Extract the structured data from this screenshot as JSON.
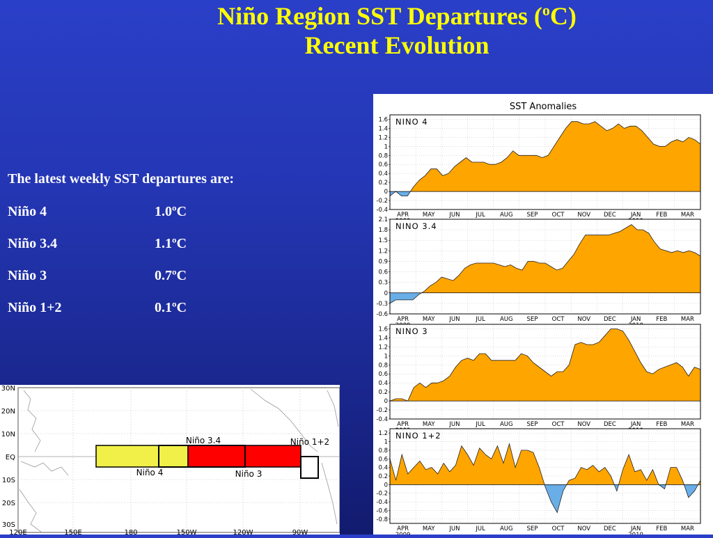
{
  "title": {
    "line1_pre": "Niño Region SST Departures (",
    "line1_sup": "o",
    "line1_post": "C)",
    "line2": "Recent Evolution"
  },
  "latest": {
    "heading": "The latest weekly SST departures are:",
    "regions": [
      {
        "name": "Niño 4",
        "value": "1.0ºC"
      },
      {
        "name": "Niño 3.4",
        "value": "1.1ºC"
      },
      {
        "name": "Niño 3",
        "value": "0.7ºC"
      },
      {
        "name": "Niño 1+2",
        "value": "0.1ºC"
      }
    ]
  },
  "colors": {
    "positive": "#ffa500",
    "negative": "#6aaee8",
    "nino4_box": "#f0f048",
    "nino3_box": "#ff0000"
  },
  "chart_data": {
    "type": "area",
    "title": "SST Anomalies",
    "months": [
      "APR",
      "MAY",
      "JUN",
      "JUL",
      "AUG",
      "SEP",
      "OCT",
      "NOV",
      "DEC",
      "JAN",
      "FEB",
      "MAR"
    ],
    "year_labels": [
      {
        "month": "APR",
        "year": "2009"
      },
      {
        "month": "JAN",
        "year": "2010"
      }
    ],
    "grid": true,
    "panels": [
      {
        "name": "NINO 4",
        "ylim": [
          -0.4,
          1.7
        ],
        "yticks": [
          "-0.4",
          "-0.2",
          "0",
          "0.2",
          "0.4",
          "0.6",
          "0.8",
          "1",
          "1.2",
          "1.4",
          "1.6"
        ],
        "tick_values": [
          -0.4,
          -0.2,
          0,
          0.2,
          0.4,
          0.6,
          0.8,
          1,
          1.2,
          1.4,
          1.6
        ],
        "values": [
          -0.1,
          0.0,
          -0.1,
          -0.1,
          0.1,
          0.25,
          0.35,
          0.5,
          0.5,
          0.35,
          0.4,
          0.55,
          0.65,
          0.75,
          0.65,
          0.65,
          0.65,
          0.6,
          0.6,
          0.65,
          0.75,
          0.9,
          0.8,
          0.8,
          0.8,
          0.8,
          0.75,
          0.8,
          1.0,
          1.2,
          1.4,
          1.55,
          1.55,
          1.5,
          1.5,
          1.55,
          1.45,
          1.35,
          1.4,
          1.5,
          1.4,
          1.45,
          1.45,
          1.35,
          1.2,
          1.05,
          1.0,
          1.0,
          1.1,
          1.15,
          1.1,
          1.2,
          1.15,
          1.05
        ]
      },
      {
        "name": "NINO 3.4",
        "ylim": [
          -0.6,
          2.1
        ],
        "yticks": [
          "-0.6",
          "-0.3",
          "0",
          "0.3",
          "0.6",
          "0.9",
          "1.2",
          "1.5",
          "1.8",
          "2.1"
        ],
        "tick_values": [
          -0.6,
          -0.3,
          0,
          0.3,
          0.6,
          0.9,
          1.2,
          1.5,
          1.8,
          2.1
        ],
        "values": [
          -0.3,
          -0.2,
          -0.2,
          -0.2,
          -0.2,
          -0.05,
          0.05,
          0.2,
          0.3,
          0.45,
          0.4,
          0.35,
          0.5,
          0.7,
          0.8,
          0.85,
          0.85,
          0.85,
          0.85,
          0.8,
          0.75,
          0.8,
          0.7,
          0.65,
          0.9,
          0.9,
          0.85,
          0.85,
          0.75,
          0.65,
          0.7,
          0.9,
          1.1,
          1.4,
          1.65,
          1.65,
          1.65,
          1.65,
          1.65,
          1.7,
          1.75,
          1.85,
          1.95,
          1.8,
          1.8,
          1.7,
          1.45,
          1.25,
          1.2,
          1.15,
          1.2,
          1.15,
          1.2,
          1.15,
          1.05
        ]
      },
      {
        "name": "NINO 3",
        "ylim": [
          -0.4,
          1.7
        ],
        "yticks": [
          "-0.4",
          "-0.2",
          "0",
          "0.2",
          "0.4",
          "0.6",
          "0.8",
          "1",
          "1.2",
          "1.4",
          "1.6"
        ],
        "tick_values": [
          -0.4,
          -0.2,
          0,
          0.2,
          0.4,
          0.6,
          0.8,
          1,
          1.2,
          1.4,
          1.6
        ],
        "values": [
          0.0,
          0.05,
          0.05,
          0.0,
          0.3,
          0.4,
          0.3,
          0.4,
          0.4,
          0.45,
          0.55,
          0.75,
          0.9,
          0.95,
          0.9,
          1.05,
          1.05,
          0.9,
          0.9,
          0.9,
          0.9,
          0.9,
          1.05,
          1.0,
          0.85,
          0.75,
          0.65,
          0.55,
          0.65,
          0.65,
          0.8,
          1.25,
          1.3,
          1.25,
          1.25,
          1.3,
          1.45,
          1.6,
          1.6,
          1.55,
          1.35,
          1.1,
          0.85,
          0.65,
          0.6,
          0.7,
          0.75,
          0.8,
          0.85,
          0.75,
          0.55,
          0.75,
          0.7
        ]
      },
      {
        "name": "NINO 1+2",
        "ylim": [
          -0.9,
          1.3
        ],
        "yticks": [
          "-0.8",
          "-0.6",
          "-0.4",
          "-0.2",
          "0",
          "0.2",
          "0.4",
          "0.6",
          "0.8",
          "1",
          "1.2"
        ],
        "tick_values": [
          -0.8,
          -0.6,
          -0.4,
          -0.2,
          0,
          0.2,
          0.4,
          0.6,
          0.8,
          1,
          1.2
        ],
        "values": [
          0.6,
          0.1,
          0.7,
          0.25,
          0.4,
          0.55,
          0.35,
          0.4,
          0.25,
          0.5,
          0.3,
          0.45,
          0.9,
          0.7,
          0.45,
          0.85,
          0.7,
          0.6,
          0.9,
          0.5,
          0.95,
          0.4,
          0.8,
          0.8,
          0.75,
          0.4,
          -0.05,
          -0.4,
          -0.65,
          -0.15,
          0.1,
          0.15,
          0.4,
          0.35,
          0.45,
          0.3,
          0.4,
          0.2,
          -0.15,
          0.35,
          0.7,
          0.3,
          0.35,
          0.1,
          0.35,
          0.0,
          -0.1,
          0.4,
          0.4,
          0.1,
          -0.3,
          -0.15,
          0.1
        ]
      }
    ]
  },
  "map": {
    "lat_labels": [
      "30N",
      "20N",
      "10N",
      "EQ",
      "10S",
      "20S",
      "30S"
    ],
    "lon_labels": [
      "120E",
      "150E",
      "180",
      "150W",
      "120W",
      "90W"
    ],
    "region_labels": {
      "nino34": "Niño 3.4",
      "nino12": "Niño 1+2",
      "nino4": "Niño 4",
      "nino3": "Niño 3"
    }
  }
}
